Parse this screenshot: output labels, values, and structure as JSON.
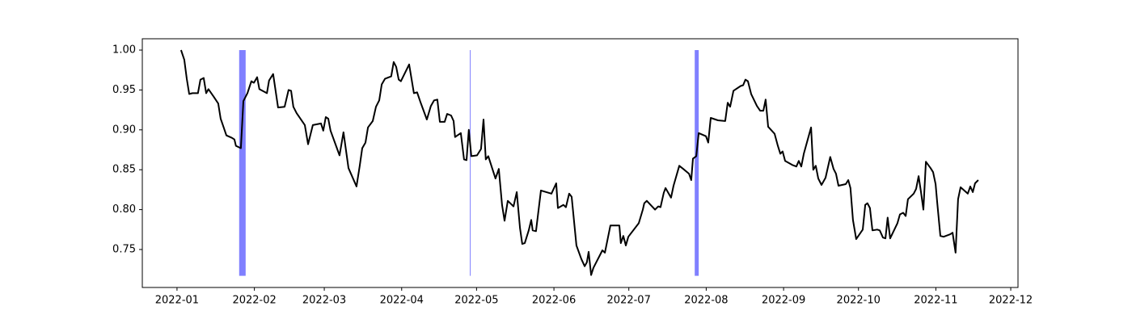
{
  "chart_data": {
    "type": "line",
    "color": "#000000",
    "x": [
      1.6,
      2.9,
      3.9,
      4.9,
      6.2,
      8.4,
      9.4,
      10.7,
      11.7,
      12.6,
      14.6,
      16.5,
      17.5,
      18.5,
      19.8,
      22.0,
      23.0,
      23.6,
      25.6,
      26.6,
      28.2,
      29.8,
      30.8,
      32.1,
      33.0,
      36.0,
      36.9,
      38.5,
      40.5,
      43.1,
      44.7,
      45.7,
      46.6,
      47.9,
      51.2,
      52.5,
      54.4,
      57.7,
      58.6,
      59.6,
      60.6,
      61.5,
      65.1,
      66.7,
      68.7,
      71.9,
      73.2,
      74.2,
      75.5,
      76.5,
      78.4,
      79.7,
      81.0,
      82.0,
      83.3,
      85.8,
      86.8,
      87.8,
      88.8,
      89.7,
      93.0,
      94.9,
      96.2,
      97.5,
      100.1,
      101.7,
      103.0,
      104.3,
      105.3,
      107.2,
      108.2,
      109.8,
      110.8,
      111.4,
      113.7,
      115.0,
      116.0,
      116.9,
      117.9,
      120.2,
      121.8,
      122.8,
      123.7,
      124.7,
      127.6,
      128.9,
      130.2,
      131.2,
      132.5,
      134.8,
      136.1,
      137.4,
      138.3,
      139.3,
      140.9,
      141.9,
      142.5,
      143.8,
      145.8,
      150.0,
      151.9,
      152.6,
      154.8,
      155.8,
      157.1,
      158.1,
      160.0,
      162.0,
      163.3,
      164.2,
      164.9,
      165.9,
      166.8,
      170.4,
      171.4,
      173.6,
      177.2,
      177.8,
      178.8,
      179.8,
      180.8,
      185.0,
      186.6,
      187.2,
      188.2,
      191.5,
      192.8,
      193.7,
      195.0,
      195.7,
      197.9,
      198.9,
      201.2,
      202.8,
      205.1,
      206.0,
      206.7,
      208.0,
      209.0,
      211.9,
      212.8,
      213.8,
      216.7,
      219.6,
      220.6,
      221.6,
      222.9,
      225.8,
      226.8,
      227.7,
      228.7,
      230.0,
      232.3,
      233.6,
      234.9,
      235.8,
      236.8,
      239.4,
      240.7,
      241.7,
      242.6,
      243.6,
      246.5,
      248.1,
      249.1,
      250.1,
      251.1,
      254.0,
      254.9,
      255.9,
      256.9,
      258.2,
      259.8,
      261.7,
      263.0,
      264.0,
      265.0,
      267.9,
      268.9,
      269.8,
      270.8,
      272.1,
      274.7,
      275.7,
      276.6,
      277.6,
      278.6,
      280.5,
      281.5,
      282.8,
      283.8,
      284.7,
      285.7,
      288.6,
      289.6,
      290.9,
      291.9,
      292.8,
      295.1,
      296.1,
      297.1,
      298.0,
      299.0,
      300.0,
      301.9,
      302.9,
      303.9,
      304.5,
      305.8,
      307.1,
      309.7,
      310.7,
      311.9,
      312.9,
      313.9,
      316.8,
      317.8,
      318.8,
      319.7,
      321.0
    ],
    "values": [
      1.0,
      0.988,
      0.964,
      0.945,
      0.946,
      0.946,
      0.963,
      0.965,
      0.946,
      0.951,
      0.942,
      0.933,
      0.914,
      0.905,
      0.893,
      0.89,
      0.888,
      0.88,
      0.877,
      0.936,
      0.946,
      0.961,
      0.959,
      0.966,
      0.951,
      0.946,
      0.962,
      0.97,
      0.928,
      0.929,
      0.95,
      0.949,
      0.929,
      0.921,
      0.906,
      0.882,
      0.906,
      0.908,
      0.899,
      0.916,
      0.914,
      0.899,
      0.868,
      0.897,
      0.852,
      0.829,
      0.855,
      0.877,
      0.884,
      0.903,
      0.911,
      0.929,
      0.937,
      0.957,
      0.964,
      0.967,
      0.985,
      0.979,
      0.963,
      0.961,
      0.982,
      0.946,
      0.947,
      0.935,
      0.913,
      0.93,
      0.937,
      0.938,
      0.91,
      0.91,
      0.92,
      0.918,
      0.911,
      0.891,
      0.896,
      0.863,
      0.862,
      0.9,
      0.867,
      0.868,
      0.876,
      0.913,
      0.863,
      0.867,
      0.839,
      0.851,
      0.806,
      0.786,
      0.811,
      0.804,
      0.822,
      0.777,
      0.757,
      0.758,
      0.774,
      0.787,
      0.774,
      0.773,
      0.824,
      0.82,
      0.833,
      0.802,
      0.806,
      0.803,
      0.82,
      0.816,
      0.755,
      0.738,
      0.729,
      0.734,
      0.747,
      0.718,
      0.727,
      0.749,
      0.746,
      0.78,
      0.78,
      0.758,
      0.767,
      0.755,
      0.766,
      0.783,
      0.8,
      0.808,
      0.811,
      0.8,
      0.804,
      0.803,
      0.821,
      0.827,
      0.815,
      0.83,
      0.855,
      0.851,
      0.845,
      0.837,
      0.864,
      0.867,
      0.896,
      0.892,
      0.884,
      0.915,
      0.912,
      0.911,
      0.934,
      0.929,
      0.949,
      0.955,
      0.956,
      0.963,
      0.961,
      0.945,
      0.93,
      0.924,
      0.924,
      0.938,
      0.904,
      0.895,
      0.88,
      0.87,
      0.873,
      0.861,
      0.856,
      0.854,
      0.861,
      0.854,
      0.87,
      0.903,
      0.85,
      0.855,
      0.839,
      0.831,
      0.84,
      0.866,
      0.851,
      0.845,
      0.83,
      0.832,
      0.837,
      0.827,
      0.787,
      0.763,
      0.775,
      0.806,
      0.808,
      0.802,
      0.774,
      0.775,
      0.774,
      0.765,
      0.764,
      0.79,
      0.764,
      0.783,
      0.794,
      0.796,
      0.792,
      0.813,
      0.82,
      0.826,
      0.842,
      0.823,
      0.8,
      0.86,
      0.852,
      0.847,
      0.832,
      0.81,
      0.767,
      0.766,
      0.769,
      0.771,
      0.746,
      0.813,
      0.828,
      0.82,
      0.829,
      0.822,
      0.833,
      0.837
    ],
    "spans": [
      {
        "x0": 24.9,
        "x1": 27.5,
        "ymin": 0.717,
        "ymax": 1.0
      },
      {
        "x0": 117.3,
        "x1": 117.6,
        "ymin": 0.717,
        "ymax": 1.0
      },
      {
        "x0": 207.4,
        "x1": 209.0,
        "ymin": 0.717,
        "ymax": 1.0
      }
    ],
    "span_color": "#8080ff",
    "xlim": [
      -13.9,
      336.9
    ],
    "xticks": [
      {
        "value": 0,
        "label": "2022-01"
      },
      {
        "value": 31,
        "label": "2022-02"
      },
      {
        "value": 59,
        "label": "2022-03"
      },
      {
        "value": 90,
        "label": "2022-04"
      },
      {
        "value": 120,
        "label": "2022-05"
      },
      {
        "value": 151,
        "label": "2022-06"
      },
      {
        "value": 181,
        "label": "2022-07"
      },
      {
        "value": 212,
        "label": "2022-08"
      },
      {
        "value": 243,
        "label": "2022-09"
      },
      {
        "value": 273,
        "label": "2022-10"
      },
      {
        "value": 304,
        "label": "2022-11"
      },
      {
        "value": 334,
        "label": "2022-12"
      }
    ],
    "ylim": [
      0.7024,
      1.0142
    ],
    "yticks": [
      {
        "value": 0.75,
        "label": "0.75"
      },
      {
        "value": 0.8,
        "label": "0.80"
      },
      {
        "value": 0.85,
        "label": "0.85"
      },
      {
        "value": 0.9,
        "label": "0.90"
      },
      {
        "value": 0.95,
        "label": "0.95"
      },
      {
        "value": 1.0,
        "label": "1.00"
      }
    ],
    "grid": false
  }
}
